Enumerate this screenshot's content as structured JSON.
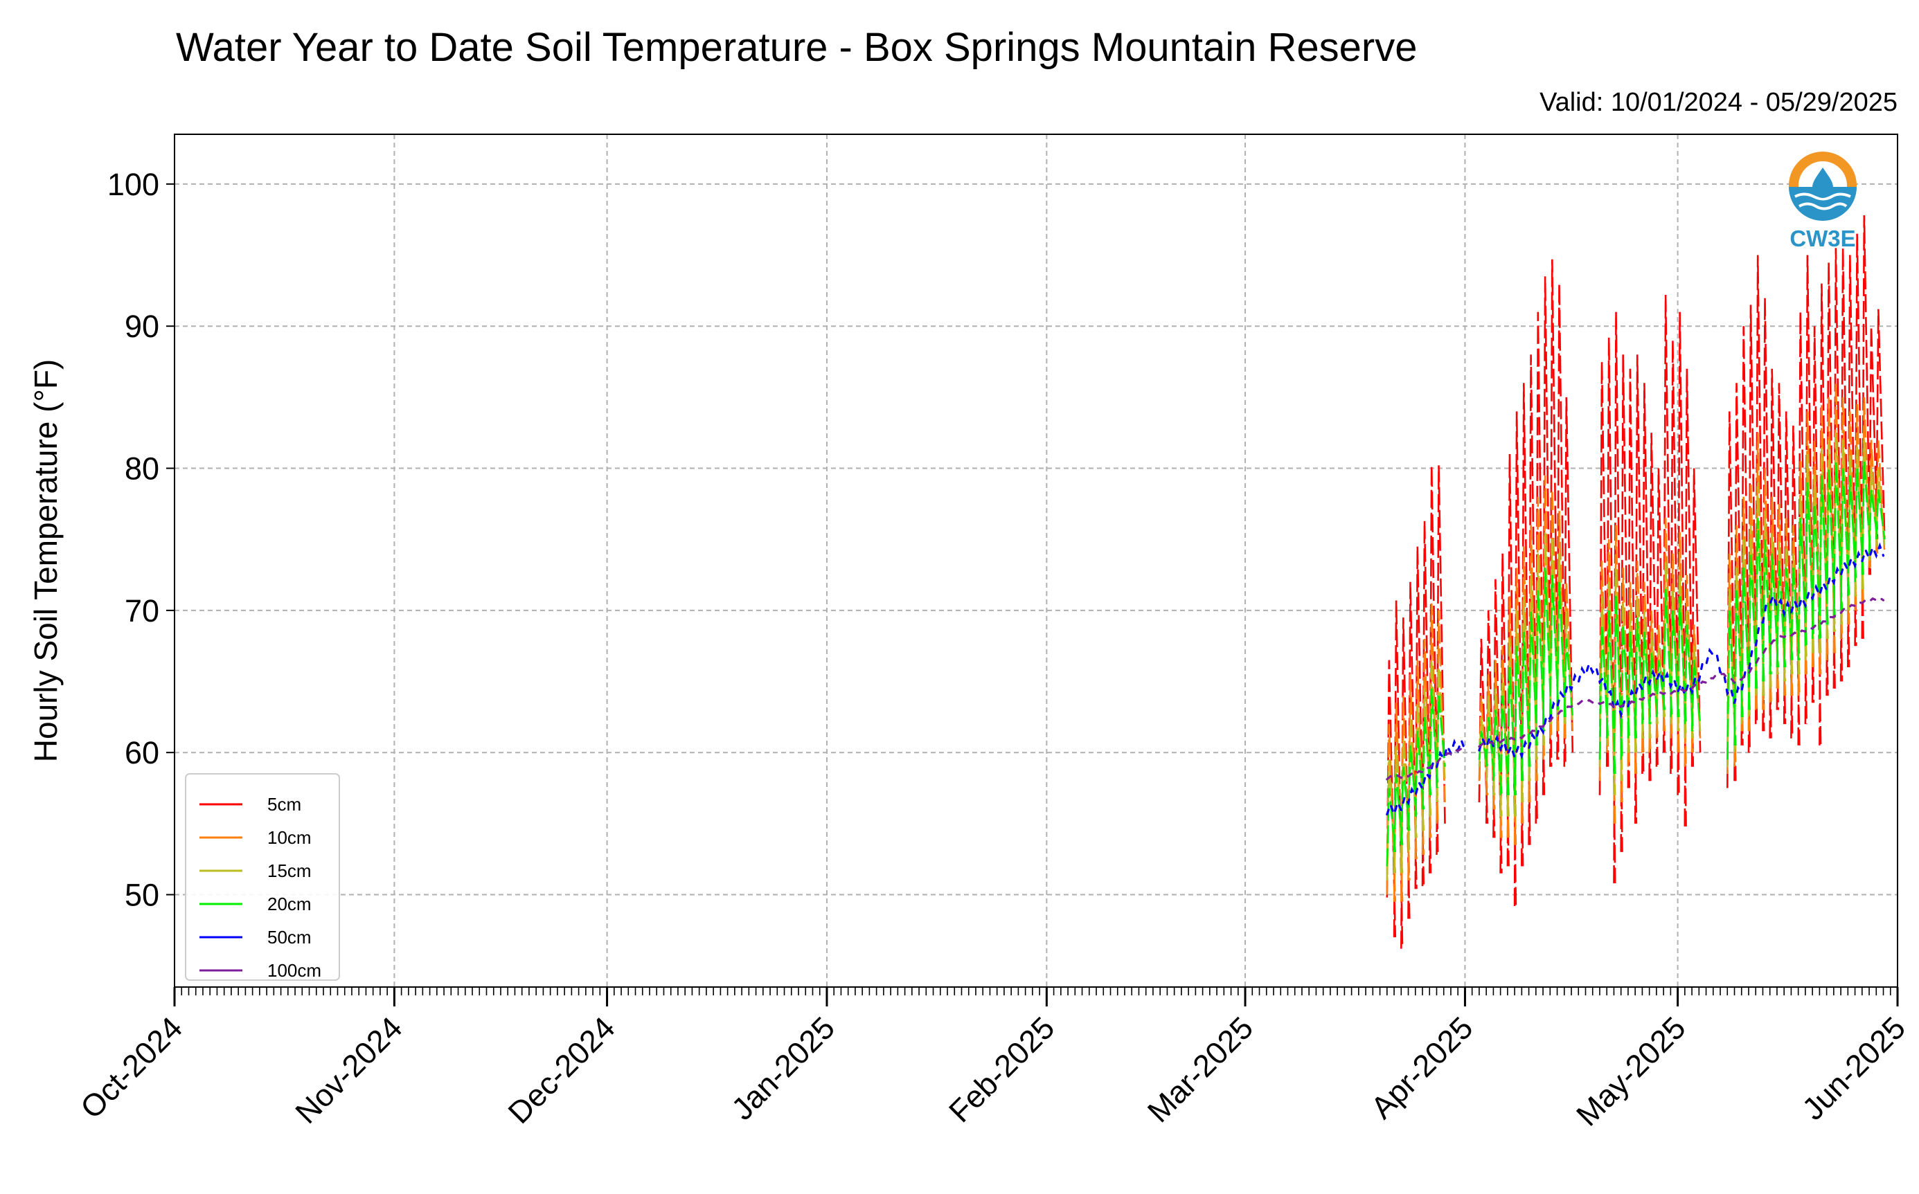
{
  "chart_data": {
    "type": "line",
    "title": "Water Year to Date Soil Temperature - Box Springs Mountain Reserve",
    "subtitle": "Valid: 10/01/2024 - 05/29/2025",
    "xlabel": "",
    "ylabel": "Hourly Soil Temperature (°F)",
    "xlim": [
      "2024-10-01",
      "2025-06-01"
    ],
    "ylim": [
      43.5,
      103.5
    ],
    "grid": true,
    "legend_position": "lower-left",
    "x_ticks": [
      "2024-10-01",
      "2024-11-01",
      "2024-12-01",
      "2025-01-01",
      "2025-02-01",
      "2025-03-01",
      "2025-04-01",
      "2025-05-01",
      "2025-06-01"
    ],
    "x_tick_labels": [
      "Oct-2024",
      "Nov-2024",
      "Dec-2024",
      "Jan-2025",
      "Feb-2025",
      "Mar-2025",
      "Apr-2025",
      "May-2025",
      "Jun-2025"
    ],
    "y_ticks": [
      50,
      60,
      70,
      80,
      90,
      100
    ],
    "y_tick_labels": [
      "50",
      "60",
      "70",
      "80",
      "90",
      "100"
    ],
    "data_start": "2025-03-21",
    "data_end": "2025-05-29",
    "series": [
      {
        "name": "5cm",
        "color": "#ff0000",
        "daily_min": [
          49.8,
          47.0,
          46.2,
          48.3,
          50.4,
          50.6,
          51.5,
          52.8,
          55.0,
          57.0,
          58.0,
          null,
          null,
          56.5,
          55.0,
          54.0,
          51.5,
          52.0,
          49.2,
          52.0,
          53.5,
          55.0,
          57.0,
          59.0,
          59.5,
          59.0,
          60.0,
          59.5,
          null,
          null,
          57.0,
          59.0,
          50.8,
          53.0,
          57.5,
          55.0,
          58.5,
          58.0,
          59.0,
          60.0,
          58.5,
          57.0,
          54.8,
          59.0,
          60.0,
          61.0,
          null,
          null,
          57.5,
          58.0,
          60.5,
          60.0,
          62.0,
          61.5,
          61.0,
          63.0,
          62.0,
          61.0,
          60.5,
          62.0,
          63.5,
          60.5,
          64.0,
          64.5,
          65.0,
          66.0,
          67.5,
          68.0,
          72.5,
          75.0
        ],
        "daily_max": [
          66.5,
          70.7,
          69.5,
          72.0,
          74.5,
          76.3,
          80.2,
          80.2,
          null,
          null,
          null,
          72.8,
          72.0,
          68.0,
          70.0,
          72.2,
          74.0,
          81.0,
          84.0,
          86.0,
          88.0,
          91.0,
          93.5,
          94.7,
          93.0,
          85.0,
          null,
          null,
          null,
          81.0,
          87.5,
          89.2,
          91.0,
          88.0,
          87.0,
          88.0,
          86.0,
          82.5,
          80.0,
          92.2,
          89.0,
          91.0,
          87.0,
          80.0,
          null,
          null,
          77.0,
          83.0,
          84.0,
          86.0,
          90.0,
          91.5,
          95.0,
          92.0,
          87.0,
          86.0,
          84.0,
          83.0,
          91.0,
          95.0,
          90.0,
          93.0,
          94.5,
          95.5,
          95.5,
          95.0,
          96.5,
          97.8,
          90.0,
          91.2
        ]
      },
      {
        "name": "10cm",
        "color": "#ff7f0e",
        "daily_min": [
          50.0,
          49.5,
          49.5,
          51.0,
          52.5,
          52.8,
          54.0,
          55.0,
          56.5,
          58.5,
          59.5,
          null,
          null,
          58.0,
          57.0,
          56.0,
          54.0,
          54.0,
          53.5,
          55.0,
          56.5,
          58.0,
          59.5,
          61.0,
          61.5,
          61.0,
          61.5,
          60.5,
          null,
          null,
          58.0,
          60.0,
          55.0,
          56.5,
          59.0,
          58.5,
          60.0,
          60.0,
          61.0,
          61.5,
          61.0,
          60.0,
          59.0,
          60.0,
          61.0,
          62.0,
          null,
          null,
          58.5,
          59.0,
          61.5,
          61.5,
          63.0,
          63.0,
          63.5,
          64.5,
          64.0,
          64.0,
          64.0,
          65.5,
          66.0,
          65.5,
          66.5,
          67.0,
          68.0,
          69.0,
          70.0,
          70.5,
          73.0,
          74.0
        ],
        "daily_max": [
          62.0,
          63.5,
          64.0,
          65.5,
          66.5,
          68.0,
          70.5,
          70.0,
          null,
          null,
          null,
          66.0,
          65.0,
          64.0,
          65.5,
          66.5,
          67.5,
          71.0,
          73.0,
          74.5,
          76.0,
          78.0,
          79.5,
          78.5,
          77.0,
          72.0,
          null,
          null,
          null,
          70.0,
          73.5,
          75.0,
          76.0,
          73.0,
          72.0,
          73.5,
          72.0,
          70.0,
          69.0,
          76.5,
          74.0,
          75.5,
          72.5,
          69.0,
          null,
          null,
          69.0,
          73.0,
          74.0,
          76.0,
          78.0,
          79.0,
          82.5,
          80.0,
          78.0,
          77.5,
          76.5,
          76.0,
          80.5,
          84.0,
          82.0,
          84.5,
          85.0,
          86.0,
          85.0,
          84.0,
          84.5,
          85.0,
          82.0,
          82.0
        ]
      },
      {
        "name": "15cm",
        "color": "#bcbd22",
        "daily_min": [
          51.0,
          51.5,
          51.5,
          53.0,
          54.0,
          54.5,
          55.5,
          56.5,
          58.0,
          59.5,
          60.0,
          null,
          null,
          59.0,
          58.0,
          57.0,
          55.5,
          55.5,
          55.5,
          56.5,
          58.0,
          59.5,
          60.5,
          62.0,
          62.5,
          62.0,
          62.0,
          61.0,
          null,
          null,
          59.0,
          60.5,
          57.0,
          58.0,
          60.0,
          60.0,
          61.0,
          61.0,
          62.0,
          62.5,
          62.0,
          61.5,
          61.0,
          61.0,
          61.5,
          62.5,
          null,
          null,
          59.0,
          60.0,
          62.0,
          62.5,
          64.0,
          64.0,
          64.5,
          65.5,
          65.0,
          65.5,
          65.5,
          66.5,
          67.0,
          67.0,
          68.0,
          68.5,
          69.0,
          70.0,
          71.0,
          71.5,
          73.5,
          74.5
        ],
        "daily_max": [
          59.5,
          60.5,
          61.0,
          62.5,
          63.5,
          64.5,
          66.5,
          66.0,
          null,
          null,
          null,
          64.0,
          63.0,
          62.5,
          64.0,
          64.5,
          65.5,
          68.0,
          70.0,
          71.0,
          72.5,
          74.0,
          75.5,
          75.0,
          74.0,
          70.0,
          null,
          null,
          null,
          68.0,
          71.0,
          72.0,
          73.0,
          70.5,
          70.0,
          71.0,
          70.0,
          68.5,
          67.5,
          73.5,
          71.5,
          72.5,
          70.0,
          67.5,
          null,
          null,
          67.0,
          70.5,
          71.5,
          73.0,
          75.0,
          76.0,
          79.0,
          77.0,
          75.5,
          75.0,
          74.5,
          74.0,
          78.0,
          81.0,
          79.5,
          81.5,
          82.0,
          82.5,
          82.0,
          81.0,
          81.5,
          82.0,
          80.0,
          80.0
        ]
      },
      {
        "name": "20cm",
        "color": "#00ee00",
        "daily_min": [
          52.0,
          53.0,
          53.5,
          54.5,
          55.5,
          56.0,
          57.0,
          57.5,
          59.0,
          60.0,
          60.5,
          null,
          null,
          59.5,
          59.0,
          58.0,
          57.0,
          57.0,
          57.0,
          58.0,
          59.0,
          60.5,
          61.5,
          62.5,
          63.0,
          62.5,
          62.5,
          61.5,
          null,
          null,
          59.5,
          61.0,
          58.5,
          59.5,
          61.0,
          61.0,
          62.0,
          62.0,
          62.5,
          63.0,
          62.5,
          62.5,
          62.0,
          61.5,
          62.0,
          63.0,
          null,
          null,
          59.5,
          60.5,
          62.5,
          63.0,
          64.5,
          65.0,
          65.5,
          66.0,
          66.0,
          66.5,
          66.5,
          67.5,
          68.0,
          68.0,
          69.0,
          69.5,
          70.0,
          71.0,
          72.0,
          72.5,
          74.0,
          75.0
        ],
        "daily_max": [
          57.5,
          58.5,
          59.0,
          60.5,
          61.5,
          62.5,
          64.5,
          64.0,
          null,
          null,
          null,
          62.5,
          62.0,
          61.5,
          62.5,
          63.0,
          64.0,
          66.0,
          67.5,
          68.5,
          70.0,
          71.5,
          73.0,
          72.5,
          72.0,
          68.0,
          null,
          null,
          null,
          66.5,
          69.0,
          70.0,
          71.0,
          69.0,
          68.5,
          69.5,
          68.5,
          67.0,
          66.5,
          71.5,
          70.0,
          71.0,
          69.0,
          66.5,
          null,
          null,
          66.0,
          69.0,
          70.0,
          71.5,
          73.0,
          74.0,
          76.5,
          75.0,
          74.0,
          73.5,
          73.0,
          73.0,
          76.5,
          79.0,
          77.5,
          79.5,
          80.0,
          80.5,
          80.0,
          79.5,
          80.0,
          80.5,
          78.5,
          78.5
        ]
      },
      {
        "name": "50cm",
        "color": "#0000ff",
        "daily_mean": [
          56.0,
          56.0,
          56.3,
          56.8,
          57.3,
          57.8,
          58.6,
          59.3,
          59.9,
          60.3,
          60.5,
          null,
          null,
          60.5,
          60.7,
          60.8,
          60.6,
          60.2,
          60.0,
          60.1,
          60.6,
          61.2,
          61.8,
          62.7,
          63.5,
          64.2,
          64.8,
          65.3,
          65.8,
          66.0,
          65.3,
          64.5,
          63.4,
          63.0,
          63.6,
          64.3,
          64.8,
          65.2,
          65.4,
          65.3,
          65.0,
          64.6,
          64.4,
          64.6,
          65.4,
          66.5,
          67.2,
          66.0,
          64.5,
          63.8,
          64.6,
          66.0,
          67.8,
          69.5,
          70.8,
          70.6,
          70.1,
          70.2,
          70.4,
          70.7,
          71.2,
          71.4,
          71.8,
          72.3,
          72.8,
          73.2,
          73.5,
          73.8,
          74.0,
          74.2
        ]
      },
      {
        "name": "100cm",
        "color": "#7e1e9c",
        "daily_mean": [
          58.2,
          58.3,
          58.3,
          58.4,
          58.5,
          58.7,
          59.0,
          59.3,
          59.7,
          60.0,
          60.2,
          null,
          null,
          60.5,
          60.6,
          60.7,
          60.8,
          60.9,
          61.0,
          61.1,
          61.3,
          61.6,
          61.9,
          62.3,
          62.7,
          63.0,
          63.3,
          63.5,
          63.6,
          63.6,
          63.5,
          63.4,
          63.3,
          63.3,
          63.4,
          63.6,
          63.8,
          64.0,
          64.1,
          64.2,
          64.2,
          64.3,
          64.4,
          64.6,
          64.8,
          65.0,
          65.3,
          65.6,
          65.3,
          65.0,
          65.2,
          65.6,
          66.3,
          67.0,
          67.6,
          68.0,
          68.2,
          68.3,
          68.4,
          68.6,
          68.8,
          69.0,
          69.3,
          69.6,
          69.9,
          70.2,
          70.4,
          70.6,
          70.7,
          70.8
        ]
      }
    ]
  },
  "logo": {
    "text": "CW3E",
    "colors": {
      "orange": "#f29624",
      "blue": "#2a93c8"
    }
  }
}
